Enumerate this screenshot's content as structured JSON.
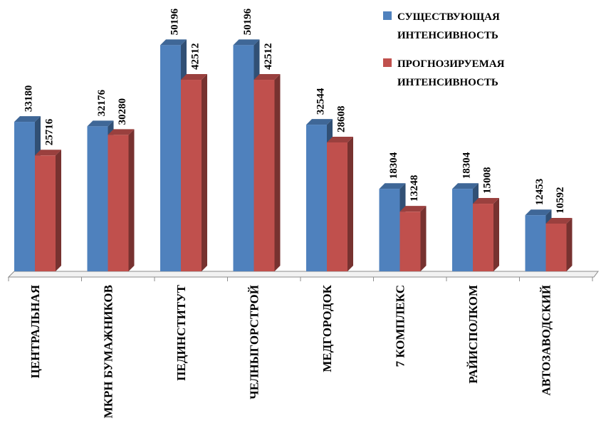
{
  "chart_data": {
    "type": "bar",
    "categories": [
      "ЦЕНТРАЛЬНАЯ",
      "МКРН БУМАЖНИКОВ",
      "ПЕДИНСТИТУТ",
      "ЧЕЛНЫГОРСТРОЙ",
      "МЕДГОРОДОК",
      "7 КОМПЛЕКС",
      "РАЙИСПОЛКОМ",
      "АВТОЗАВОДСКИЙ"
    ],
    "series": [
      {
        "name": "СУЩЕСТВУЮЩАЯ ИНТЕНСИВНОСТЬ",
        "legend_lines": [
          "СУЩЕСТВУЮЩАЯ",
          "ИНТЕНСИВНОСТЬ"
        ],
        "color": "#4F81BD",
        "values": [
          33180,
          32176,
          50196,
          50196,
          32544,
          18304,
          18304,
          12453
        ]
      },
      {
        "name": "ПРОГНОЗИРУЕМАЯ ИНТЕНСИВНОСТЬ",
        "legend_lines": [
          "ПРОГНОЗИРУЕМАЯ",
          "ИНТЕНСИВНОСТЬ"
        ],
        "color": "#C0504D",
        "values": [
          25716,
          30280,
          42512,
          42512,
          28608,
          13248,
          15008,
          10592
        ]
      }
    ],
    "value_labels": [
      [
        "33180",
        "32176",
        "50196",
        "50196",
        "32544",
        "18304",
        "18304",
        "12453"
      ],
      [
        "25716",
        "30280",
        "42512",
        "42512",
        "28608",
        "13248",
        "15008",
        "10592"
      ]
    ],
    "ylim": [
      0,
      52000
    ],
    "grid": false,
    "legend_position": "top-right",
    "three_d": true
  }
}
